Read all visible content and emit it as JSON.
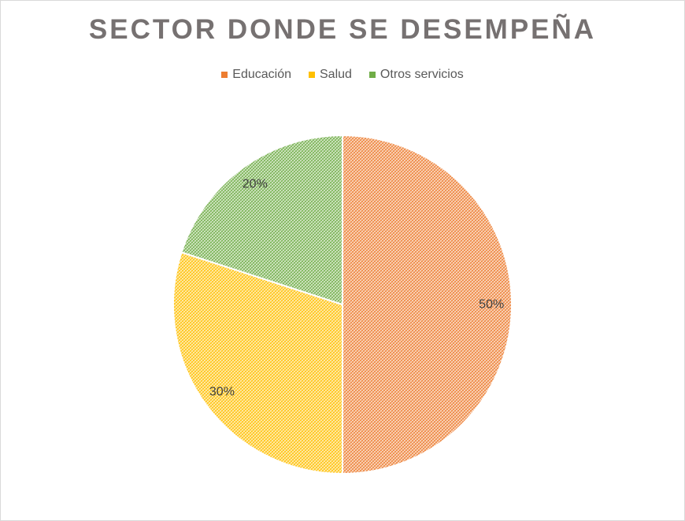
{
  "chart_data": {
    "type": "pie",
    "title": "SECTOR DONDE SE DESEMPEÑA",
    "slices": [
      {
        "label": "Educación",
        "value": 50,
        "display": "50%",
        "color": "#ED7D31"
      },
      {
        "label": "Salud",
        "value": 30,
        "display": "30%",
        "color": "#FFC000"
      },
      {
        "label": "Otros servicios",
        "value": 20,
        "display": "20%",
        "color": "#70AD47"
      }
    ],
    "legend_position": "top",
    "fill_pattern": "hatched"
  }
}
